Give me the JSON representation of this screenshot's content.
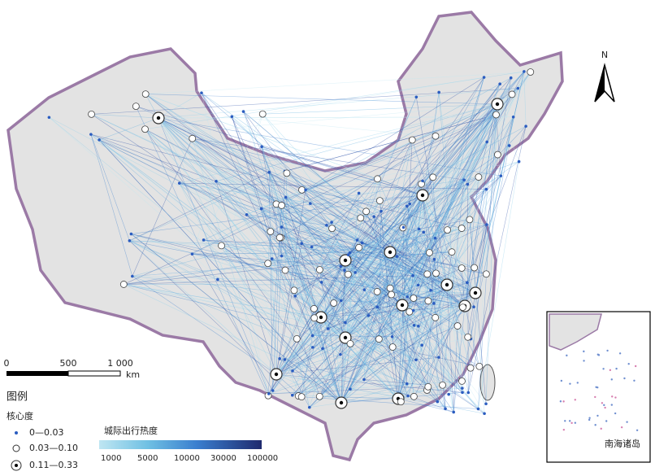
{
  "north": "N",
  "scale_bar": {
    "labels": [
      "0",
      "500",
      "1 000"
    ],
    "unit": "km"
  },
  "legend": {
    "title": "图例",
    "centrality": {
      "title": "核心度",
      "items": [
        "0—0.03",
        "0.03—0.10",
        "0.11—0.33"
      ]
    },
    "heat": {
      "title": "城际出行热度",
      "labels": [
        "1000",
        "5000",
        "10000",
        "30000",
        "100000"
      ]
    }
  },
  "inset": {
    "title": "南海诸岛"
  }
}
